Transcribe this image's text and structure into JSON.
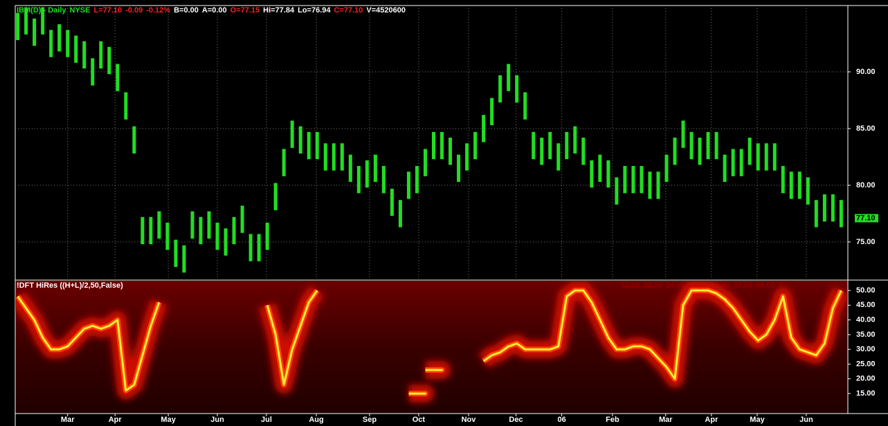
{
  "chart_data": [
    {
      "type": "ohlc",
      "header": [
        {
          "text": "IBM(D) - Daily",
          "color": "#22dd22"
        },
        {
          "text": "NYSE",
          "color": "#22dd22"
        },
        {
          "text": "L=77.10",
          "color": "#ff2020"
        },
        {
          "text": "-0.09",
          "color": "#ff2020"
        },
        {
          "text": "-0.12%",
          "color": "#ff2020"
        },
        {
          "text": "B=0.00",
          "color": "#ffffff"
        },
        {
          "text": "A=0.00",
          "color": "#ffffff"
        },
        {
          "text": "O=77.15",
          "color": "#ff2020"
        },
        {
          "text": "Hi=77.84",
          "color": "#ffffff"
        },
        {
          "text": "Lo=76.94",
          "color": "#ffffff"
        },
        {
          "text": "C=77.10",
          "color": "#ff2020"
        },
        {
          "text": "V=4520600",
          "color": "#ffffff"
        }
      ],
      "color": "#22dd22",
      "high": [
        95.2,
        95.7,
        94.7,
        95.7,
        93.7,
        94.2,
        93.7,
        93.2,
        92.7,
        91.2,
        92.7,
        92.2,
        90.7,
        88.2,
        85.2,
        77.2,
        77.2,
        77.7,
        76.7,
        75.2,
        74.7,
        77.7,
        77.2,
        77.7,
        76.7,
        76.2,
        77.2,
        78.2,
        75.7,
        75.7,
        76.7,
        80.2,
        83.2,
        85.7,
        85.2,
        84.7,
        84.7,
        83.7,
        83.7,
        83.7,
        82.7,
        81.7,
        82.2,
        82.7,
        81.7,
        79.7,
        78.7,
        81.2,
        81.7,
        83.2,
        84.7,
        84.7,
        84.2,
        82.7,
        83.7,
        84.7,
        86.2,
        87.7,
        89.7,
        90.7,
        89.7,
        88.2,
        84.7,
        84.2,
        84.7,
        83.7,
        84.7,
        85.2,
        84.2,
        82.2,
        82.7,
        82.2,
        80.7,
        81.7,
        81.7,
        81.7,
        81.2,
        81.2,
        82.7,
        84.2,
        85.7,
        84.7,
        84.2,
        84.7,
        84.7,
        82.7,
        83.2,
        83.2,
        84.2,
        83.7,
        83.7,
        83.7,
        81.7,
        81.2,
        81.2,
        80.7,
        78.7,
        79.2,
        79.2,
        78.7
      ],
      "low": [
        92.8,
        93.3,
        92.3,
        93.3,
        91.3,
        91.8,
        91.3,
        90.8,
        90.3,
        88.8,
        90.3,
        89.8,
        88.3,
        85.8,
        82.8,
        74.8,
        74.8,
        75.3,
        74.3,
        72.8,
        72.3,
        75.3,
        74.8,
        75.3,
        74.3,
        73.8,
        74.8,
        75.8,
        73.3,
        73.3,
        74.3,
        77.8,
        80.8,
        83.3,
        82.8,
        82.3,
        82.3,
        81.3,
        81.3,
        81.3,
        80.3,
        79.3,
        79.8,
        80.3,
        79.3,
        77.3,
        76.3,
        78.8,
        79.3,
        80.8,
        82.3,
        82.3,
        81.8,
        80.3,
        81.3,
        82.3,
        83.8,
        85.3,
        87.3,
        88.3,
        87.3,
        85.8,
        82.3,
        81.8,
        82.3,
        81.3,
        82.3,
        82.8,
        81.8,
        79.8,
        80.3,
        79.8,
        78.3,
        79.3,
        79.3,
        79.3,
        78.8,
        78.8,
        80.3,
        81.8,
        83.3,
        82.3,
        81.8,
        82.3,
        82.3,
        80.3,
        80.8,
        80.8,
        81.8,
        81.3,
        81.3,
        81.3,
        79.3,
        78.8,
        78.8,
        78.3,
        76.3,
        76.8,
        76.8,
        76.3
      ],
      "last": {
        "value": 77.1,
        "label": "77.10"
      },
      "xlim": [
        -0.3,
        99.8
      ],
      "xticks": [
        {
          "value": 6,
          "label": "Mar"
        },
        {
          "value": 11.7,
          "label": "Apr"
        },
        {
          "value": 18.1,
          "label": "May"
        },
        {
          "value": 24,
          "label": "Jun"
        },
        {
          "value": 29.9,
          "label": "Jul"
        },
        {
          "value": 35.9,
          "label": "Aug"
        },
        {
          "value": 42.3,
          "label": "Sep"
        },
        {
          "value": 48.2,
          "label": "Oct"
        },
        {
          "value": 54.2,
          "label": "Nov"
        },
        {
          "value": 59.9,
          "label": "Dec"
        },
        {
          "value": 65.4,
          "label": "06"
        },
        {
          "value": 71.5,
          "label": "Feb"
        },
        {
          "value": 77.9,
          "label": "Mar"
        },
        {
          "value": 83.4,
          "label": "Apr"
        },
        {
          "value": 88.9,
          "label": "May"
        },
        {
          "value": 94.8,
          "label": "Jun"
        }
      ],
      "ylim": [
        71.7,
        95.85
      ],
      "yticks": [
        {
          "value": 75,
          "label": "75.00"
        },
        {
          "value": 80,
          "label": "80.00"
        },
        {
          "value": 85,
          "label": "85.00"
        },
        {
          "value": 90,
          "label": "90.00"
        }
      ],
      "grid": true
    },
    {
      "type": "cycle-heatmap",
      "title": "!DFT HiRes  ((H+L)/2,50,False)",
      "period_labels": [
        "32.00",
        "33.00",
        "34.00",
        "35.00",
        "36.00",
        "37.00",
        "38.00",
        "3.."
      ],
      "values": [
        48,
        44,
        40,
        34,
        30,
        30,
        31,
        34,
        37,
        38,
        37,
        38,
        40,
        16,
        18,
        28,
        38,
        46,
        null,
        null,
        null,
        null,
        null,
        null,
        null,
        null,
        null,
        null,
        null,
        null,
        45,
        35,
        18,
        30,
        38,
        46,
        50,
        null,
        null,
        null,
        null,
        null,
        null,
        null,
        null,
        null,
        null,
        null,
        15,
        null,
        23,
        null,
        null,
        null,
        null,
        null,
        26,
        28,
        29,
        31,
        32,
        30,
        30,
        30,
        30,
        31,
        48,
        50,
        50,
        46,
        40,
        34,
        30,
        30,
        31,
        31,
        30,
        27,
        24,
        20,
        45,
        50,
        50,
        50,
        49,
        47,
        44,
        40,
        36,
        33,
        35,
        40,
        48,
        34,
        30,
        29,
        28,
        32,
        44,
        50
      ],
      "ylim": [
        8.2,
        53.3
      ],
      "yticks": [
        {
          "value": 15,
          "label": "15.00"
        },
        {
          "value": 20,
          "label": "20.00"
        },
        {
          "value": 25,
          "label": "25.00"
        },
        {
          "value": 30,
          "label": "30.00"
        },
        {
          "value": 35,
          "label": "35.00"
        },
        {
          "value": 40,
          "label": "40.00"
        },
        {
          "value": 45,
          "label": "45.00"
        },
        {
          "value": 50,
          "label": "50.00"
        }
      ]
    }
  ]
}
